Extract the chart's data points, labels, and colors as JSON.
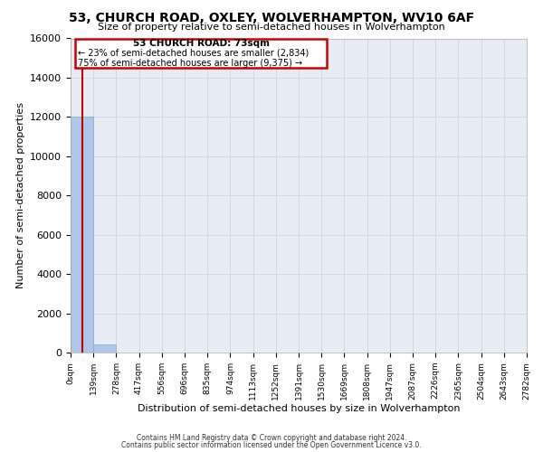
{
  "title_line1": "53, CHURCH ROAD, OXLEY, WOLVERHAMPTON, WV10 6AF",
  "title_line2": "Size of property relative to semi-detached houses in Wolverhampton",
  "xlabel": "Distribution of semi-detached houses by size in Wolverhampton",
  "ylabel": "Number of semi-detached properties",
  "property_size": 73,
  "annotation_line1": "53 CHURCH ROAD: 73sqm",
  "annotation_line2": "← 23% of semi-detached houses are smaller (2,834)",
  "annotation_line3": "75% of semi-detached houses are larger (9,375) →",
  "bar_edges": [
    0,
    139,
    278,
    417,
    556,
    696,
    835,
    974,
    1113,
    1252,
    1391,
    1530,
    1669,
    1808,
    1947,
    2087,
    2226,
    2365,
    2504,
    2643,
    2782
  ],
  "bar_heights": [
    12020,
    420,
    0,
    0,
    0,
    0,
    0,
    0,
    0,
    0,
    0,
    0,
    0,
    0,
    0,
    0,
    0,
    0,
    0,
    0
  ],
  "bar_color": "#aec6e8",
  "bar_edge_color": "#7aaed0",
  "grid_color": "#d0d8e8",
  "background_color": "#e8ecf5",
  "red_line_color": "#cc0000",
  "annotation_box_color": "#cc0000",
  "ylim": [
    0,
    16000
  ],
  "yticks": [
    0,
    2000,
    4000,
    6000,
    8000,
    10000,
    12000,
    14000,
    16000
  ],
  "xlim": [
    0,
    2782
  ],
  "footer_line1": "Contains HM Land Registry data © Crown copyright and database right 2024.",
  "footer_line2": "Contains public sector information licensed under the Open Government Licence v3.0."
}
